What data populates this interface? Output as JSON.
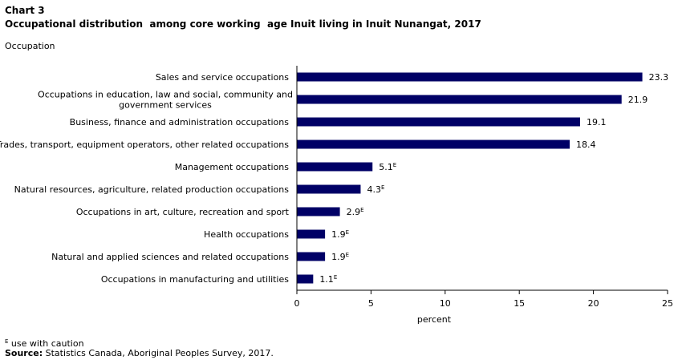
{
  "chart_data": {
    "type": "bar",
    "orientation": "horizontal",
    "title": "Chart 3",
    "subtitle": "Occupational distribution  among core working  age Inuit living in Inuit Nunangat, 2017",
    "ylabel": "Occupation",
    "xlabel": "percent",
    "xlim": [
      0,
      25
    ],
    "xticks": [
      0,
      5,
      10,
      15,
      20,
      25
    ],
    "bar_color": "#000066",
    "grid": false,
    "categories": [
      [
        "Sales and service occupations"
      ],
      [
        "Occupations in education, law and social, community and",
        "government services"
      ],
      [
        "Business, finance and administration occupations"
      ],
      [
        "Trades, transport, equipment operators, other related occupations"
      ],
      [
        "Management occupations"
      ],
      [
        "Natural resources, agriculture, related production occupations"
      ],
      [
        "Occupations in art, culture, recreation and sport"
      ],
      [
        "Health occupations"
      ],
      [
        "Natural and applied sciences and related occupations"
      ],
      [
        "Occupations in manufacturing and utilities"
      ]
    ],
    "values": [
      23.3,
      21.9,
      19.1,
      18.4,
      5.1,
      4.3,
      2.9,
      1.9,
      1.9,
      1.1
    ],
    "value_labels": [
      "23.3",
      "21.9",
      "19.1",
      "18.4",
      "5.1",
      "4.3",
      "2.9",
      "1.9",
      "1.9",
      "1.1"
    ],
    "flags": [
      "",
      "",
      "",
      "",
      "E",
      "E",
      "E",
      "E",
      "E",
      "E"
    ]
  },
  "footnote": {
    "symbol": "E",
    "text": " use with caution"
  },
  "source": {
    "label": "Source:",
    "text": " Statistics Canada, Aboriginal Peoples Survey, 2017."
  }
}
